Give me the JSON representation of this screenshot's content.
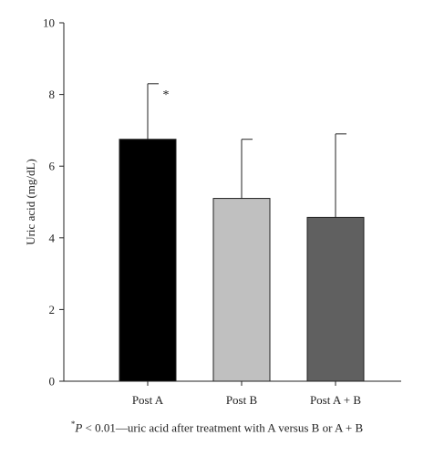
{
  "chart_data": {
    "type": "bar",
    "title": "",
    "xlabel": "",
    "ylabel": "Uric acid (mg/dL)",
    "ylim": [
      0,
      10
    ],
    "yticks": [
      0,
      2,
      4,
      6,
      8,
      10
    ],
    "categories": [
      "Post A",
      "Post B",
      "Post A + B"
    ],
    "values": [
      6.75,
      5.1,
      4.57
    ],
    "error_upper": [
      8.3,
      6.75,
      6.9
    ],
    "bar_colors": [
      "#000000",
      "#c0c0c0",
      "#606060"
    ],
    "annotations": [
      {
        "category": "Post A",
        "text": "*"
      }
    ],
    "grid": false,
    "legend": "none"
  },
  "footnote": {
    "marker": "*",
    "p_symbol": "P",
    "text": " < 0.01—uric acid after treatment with A versus B or A + B"
  }
}
